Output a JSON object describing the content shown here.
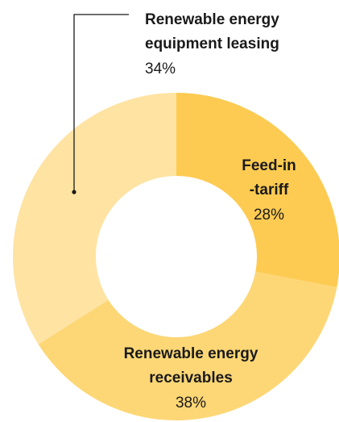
{
  "chart_data": {
    "type": "pie",
    "donut": true,
    "categories": [
      "Feed-in -tariff",
      "Renewable energy receivables",
      "Renewable energy equipment leasing"
    ],
    "values": [
      28,
      38,
      34
    ],
    "value_labels": [
      "28%",
      "38%",
      "34%"
    ],
    "label_lines": [
      [
        "Feed-in",
        "-tariff"
      ],
      [
        "Renewable energy",
        "receivables"
      ],
      [
        "Renewable energy",
        "equipment leasing"
      ]
    ],
    "colors": [
      "#fdcb52",
      "#fdd776",
      "#fee3a2"
    ],
    "start_angle": "12 o'clock, clockwise",
    "legend": "none",
    "title": ""
  }
}
